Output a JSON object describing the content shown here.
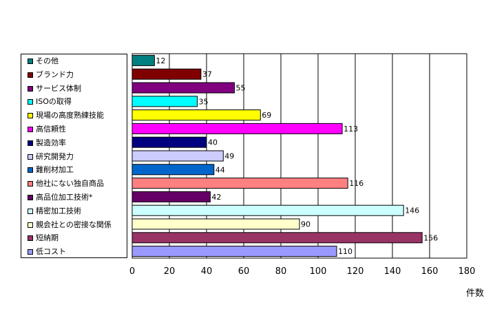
{
  "chart_data": {
    "type": "bar",
    "orientation": "horizontal",
    "categories": [
      "その他",
      "ブランド力",
      "サービス体制",
      "ISOの取得",
      "現場の高度熟練技能",
      "高信頼性",
      "製造効率",
      "研究開発力",
      "難削材加工",
      "他社にない独自商品",
      "高品位加工技術*",
      "精密加工技術",
      "親会社との密接な関係",
      "短納期",
      "低コスト"
    ],
    "values": [
      12,
      37,
      55,
      35,
      69,
      113,
      40,
      49,
      44,
      116,
      42,
      146,
      90,
      156,
      110
    ],
    "colors": [
      "#008080",
      "#800000",
      "#800080",
      "#00ffff",
      "#ffff00",
      "#ff00ff",
      "#000080",
      "#ccccff",
      "#0066cc",
      "#ff8080",
      "#660066",
      "#ccffff",
      "#ffffcc",
      "#993366",
      "#9999ff"
    ],
    "xlim": [
      0,
      180
    ],
    "xticks": [
      0,
      20,
      40,
      60,
      80,
      100,
      120,
      140,
      160,
      180
    ],
    "xlabel": "件数",
    "grid": true,
    "legend": "left"
  }
}
